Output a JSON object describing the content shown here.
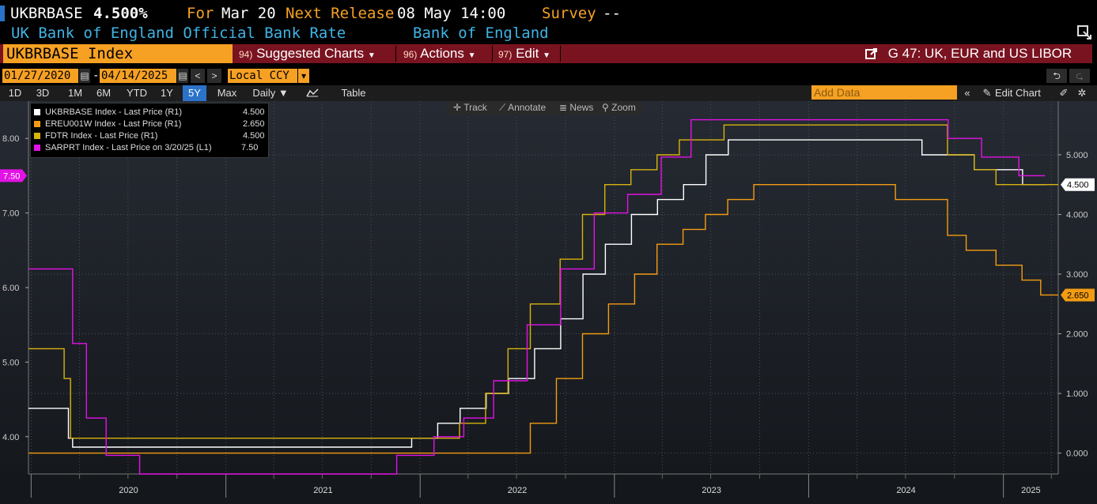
{
  "header": {
    "ticker": "UKBRBASE",
    "last": "4.500%",
    "for_label": "For",
    "for_date": "Mar 20",
    "next_release_label": "Next Release",
    "next_release": "08 May 14:00",
    "survey_label": "Survey",
    "survey": "--",
    "description": "UK Bank of England Official Bank Rate",
    "source": "Bank of England"
  },
  "toolbar": {
    "security": "UKBRBASE Index",
    "suggested_num": "94)",
    "suggested": "Suggested Charts",
    "actions_num": "96)",
    "actions": "Actions",
    "edit_num": "97)",
    "edit": "Edit",
    "chart_title": "G 47: UK, EUR and US LIBOR"
  },
  "range": {
    "start": "01/27/2020",
    "dash": "-",
    "end": "04/14/2025",
    "currency": "Local CCY"
  },
  "periods": [
    "1D",
    "3D",
    "1M",
    "6M",
    "YTD",
    "1Y",
    "5Y",
    "Max"
  ],
  "selected_period": "5Y",
  "frequency": "Daily ▼",
  "table_label": "Table",
  "add_data_placeholder": "Add Data",
  "edit_chart": "Edit Chart",
  "chart_tools": {
    "track": "Track",
    "annotate": "Annotate",
    "news": "News",
    "zoom": "Zoom"
  },
  "colors": {
    "white": "#ffffff",
    "orange": "#f39c12",
    "yellow": "#d9b20f",
    "magenta": "#e312e6",
    "accent": "#f6a123",
    "bar": "#7a1320"
  },
  "chart_data": {
    "type": "line",
    "x_axis": {
      "type": "date",
      "ticks": [
        "2020",
        "2021",
        "2022",
        "2023",
        "2024",
        "2025"
      ]
    },
    "left_axis": {
      "ylim": [
        3.5,
        8.5
      ],
      "ticks": [
        "4.00",
        "5.00",
        "6.00",
        "7.00",
        "8.00"
      ]
    },
    "right_axis": {
      "ylim": [
        -0.35,
        5.9
      ],
      "ticks": [
        "0.000",
        "1.000",
        "2.000",
        "3.000",
        "4.000",
        "5.000"
      ]
    },
    "grid": true,
    "legend_position": "top-left",
    "series": [
      {
        "name": "UKBRBASE Index - Last Price (R1)",
        "legend_value": "4.500",
        "color": "#ffffff",
        "axis": "right",
        "last_label": "4.500",
        "x": [
          "2019-12-27",
          "2020-03-11",
          "2020-03-19",
          "2021-12-16",
          "2022-02-03",
          "2022-03-17",
          "2022-05-05",
          "2022-06-16",
          "2022-08-04",
          "2022-09-22",
          "2022-11-03",
          "2022-12-15",
          "2023-02-02",
          "2023-03-23",
          "2023-05-11",
          "2023-06-22",
          "2023-08-03",
          "2024-08-01",
          "2024-11-07",
          "2025-02-06",
          "2025-03-20"
        ],
        "y": [
          0.75,
          0.25,
          0.1,
          0.25,
          0.5,
          0.75,
          1.0,
          1.25,
          1.75,
          2.25,
          3.0,
          3.5,
          4.0,
          4.25,
          4.5,
          5.0,
          5.25,
          5.0,
          4.75,
          4.5,
          4.5
        ]
      },
      {
        "name": "EREU001W Index - Last Price (R1)",
        "legend_value": "2.650",
        "color": "#f39c12",
        "axis": "right",
        "last_label": "2.650",
        "x": [
          "2019-12-27",
          "2022-07-27",
          "2022-09-14",
          "2022-11-02",
          "2022-12-21",
          "2023-02-08",
          "2023-03-22",
          "2023-05-10",
          "2023-06-21",
          "2023-08-02",
          "2023-09-20",
          "2024-06-12",
          "2024-09-18",
          "2024-10-23",
          "2024-12-18",
          "2025-02-05",
          "2025-03-12",
          "2025-04-14"
        ],
        "y": [
          0.0,
          0.5,
          1.25,
          2.0,
          2.5,
          3.0,
          3.5,
          3.75,
          4.0,
          4.25,
          4.5,
          4.25,
          3.65,
          3.4,
          3.15,
          2.9,
          2.65,
          2.65
        ]
      },
      {
        "name": "FDTR Index - Last Price (R1)",
        "legend_value": "4.500",
        "color": "#d9b20f",
        "axis": "right",
        "last_label": "4.500",
        "x": [
          "2019-12-27",
          "2020-03-03",
          "2020-03-15",
          "2022-03-16",
          "2022-05-04",
          "2022-06-15",
          "2022-07-27",
          "2022-09-21",
          "2022-11-02",
          "2022-12-14",
          "2023-02-01",
          "2023-03-22",
          "2023-05-03",
          "2023-07-26",
          "2024-09-18",
          "2024-11-07",
          "2024-12-18",
          "2025-04-14"
        ],
        "y": [
          1.75,
          1.25,
          0.25,
          0.5,
          1.0,
          1.75,
          2.5,
          3.25,
          4.0,
          4.5,
          4.75,
          5.0,
          5.25,
          5.5,
          5.0,
          4.75,
          4.5,
          4.5
        ]
      },
      {
        "name": "SARPRT Index - Last Price on 3/20/25 (L1)",
        "legend_value": "7.50",
        "color": "#e312e6",
        "axis": "left",
        "last_label": "7.50",
        "x": [
          "2019-12-27",
          "2020-01-16",
          "2020-03-19",
          "2020-04-14",
          "2020-05-21",
          "2020-07-23",
          "2021-11-18",
          "2022-01-27",
          "2022-03-24",
          "2022-05-19",
          "2022-07-21",
          "2022-09-22",
          "2022-11-24",
          "2023-01-26",
          "2023-03-30",
          "2023-05-25",
          "2024-09-19",
          "2024-11-21",
          "2025-01-30",
          "2025-03-20"
        ],
        "y": [
          6.25,
          6.25,
          5.25,
          4.25,
          3.75,
          3.5,
          3.75,
          4.0,
          4.25,
          4.75,
          5.5,
          6.25,
          7.0,
          7.25,
          7.75,
          8.25,
          8.0,
          7.75,
          7.5,
          7.5
        ]
      }
    ]
  }
}
